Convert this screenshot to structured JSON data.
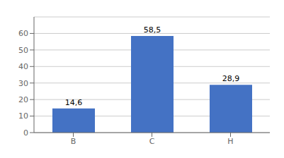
{
  "chart_data": {
    "type": "bar",
    "categories": [
      "B",
      "C",
      "H"
    ],
    "values": [
      14.6,
      58.5,
      28.9
    ],
    "value_labels": [
      "14,6",
      "58,5",
      "28,9"
    ],
    "color": "#4472C4",
    "ylim": [
      0,
      70
    ],
    "yticks": [
      0,
      10,
      20,
      30,
      40,
      50,
      60
    ],
    "grid": true,
    "data_labels": true
  }
}
